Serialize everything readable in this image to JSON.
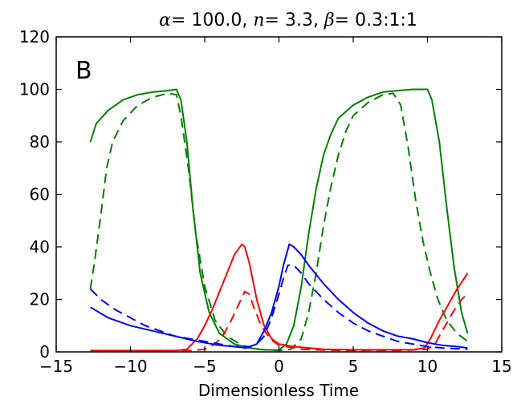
{
  "chart_data": {
    "type": "line",
    "title": {
      "alpha_symbol": "α",
      "alpha_text": "= 100.0, ",
      "n_symbol": "n",
      "n_text": "= 3.3, ",
      "beta_symbol": "β",
      "beta_text": "= 0.3:1:1"
    },
    "panel_label": "B",
    "xlabel": "Dimensionless Time",
    "ylabel": "",
    "xlim": [
      -15,
      15
    ],
    "ylim": [
      0,
      120
    ],
    "xticks": [
      -15,
      -10,
      -5,
      0,
      5,
      10,
      15
    ],
    "xtick_labels": [
      "−15",
      "−10",
      "−5",
      "0",
      "5",
      "10",
      "15"
    ],
    "yticks": [
      0,
      20,
      40,
      60,
      80,
      100,
      120
    ],
    "ytick_labels": [
      "0",
      "20",
      "40",
      "60",
      "80",
      "100",
      "120"
    ],
    "grid": false,
    "series": [
      {
        "color": "#008000",
        "style": "solid",
        "points": [
          [
            -12.7,
            80
          ],
          [
            -12.3,
            87
          ],
          [
            -11.5,
            92
          ],
          [
            -10.5,
            96
          ],
          [
            -9.5,
            98
          ],
          [
            -8.5,
            99
          ],
          [
            -7.5,
            99.5
          ],
          [
            -6.9,
            100
          ],
          [
            -6.6,
            96
          ],
          [
            -6.2,
            80
          ],
          [
            -5.8,
            55
          ],
          [
            -5.3,
            30
          ],
          [
            -4.7,
            15
          ],
          [
            -4,
            7
          ],
          [
            -3,
            3
          ],
          [
            -2,
            1.5
          ],
          [
            -1,
            0.8
          ],
          [
            0,
            0.7
          ],
          [
            0.5,
            3
          ],
          [
            1,
            10
          ],
          [
            1.5,
            25
          ],
          [
            2,
            45
          ],
          [
            2.5,
            62
          ],
          [
            3,
            75
          ],
          [
            3.5,
            83
          ],
          [
            4,
            89
          ],
          [
            5,
            94
          ],
          [
            6,
            97
          ],
          [
            7,
            99
          ],
          [
            8,
            99.5
          ],
          [
            9,
            100
          ],
          [
            10,
            100
          ],
          [
            10.3,
            96
          ],
          [
            10.8,
            80
          ],
          [
            11.3,
            55
          ],
          [
            11.8,
            32
          ],
          [
            12.3,
            15
          ],
          [
            12.7,
            7
          ]
        ]
      },
      {
        "color": "#008000",
        "style": "dashed",
        "points": [
          [
            -12.7,
            24
          ],
          [
            -12.4,
            35
          ],
          [
            -12,
            52
          ],
          [
            -11.6,
            70
          ],
          [
            -11.2,
            80
          ],
          [
            -10.5,
            88
          ],
          [
            -9.5,
            94
          ],
          [
            -8.5,
            97
          ],
          [
            -7.5,
            98.5
          ],
          [
            -6.9,
            98
          ],
          [
            -6.6,
            90
          ],
          [
            -6.1,
            70
          ],
          [
            -5.6,
            45
          ],
          [
            -5,
            25
          ],
          [
            -4.3,
            12
          ],
          [
            -3.5,
            6
          ],
          [
            -2.5,
            2.5
          ],
          [
            -1.5,
            1
          ],
          [
            0,
            0.5
          ],
          [
            0.8,
            1
          ],
          [
            1.5,
            5
          ],
          [
            2,
            15
          ],
          [
            2.5,
            30
          ],
          [
            3,
            48
          ],
          [
            3.5,
            63
          ],
          [
            4,
            75
          ],
          [
            4.5,
            84
          ],
          [
            5,
            90
          ],
          [
            6,
            95
          ],
          [
            7,
            98
          ],
          [
            7.7,
            98.5
          ],
          [
            8.2,
            94
          ],
          [
            8.7,
            78
          ],
          [
            9.2,
            58
          ],
          [
            9.7,
            42
          ],
          [
            10.2,
            30
          ],
          [
            10.7,
            20
          ],
          [
            11.3,
            12
          ],
          [
            12,
            7
          ],
          [
            12.7,
            4
          ]
        ]
      },
      {
        "color": "#ff0000",
        "style": "solid",
        "points": [
          [
            -12.7,
            0.5
          ],
          [
            -10,
            0.5
          ],
          [
            -7,
            0.5
          ],
          [
            -6.2,
            1
          ],
          [
            -5.5,
            5
          ],
          [
            -5,
            10
          ],
          [
            -4.5,
            16
          ],
          [
            -4,
            23
          ],
          [
            -3.5,
            30
          ],
          [
            -3,
            37
          ],
          [
            -2.5,
            41
          ],
          [
            -2.3,
            40
          ],
          [
            -2,
            34
          ],
          [
            -1.5,
            20
          ],
          [
            -1,
            10
          ],
          [
            -0.5,
            5
          ],
          [
            0,
            3
          ],
          [
            1,
            2
          ],
          [
            3,
            1
          ],
          [
            5,
            0.8
          ],
          [
            7,
            0.8
          ],
          [
            9,
            0.8
          ],
          [
            9.8,
            1.5
          ],
          [
            10.2,
            5
          ],
          [
            10.8,
            12
          ],
          [
            11.5,
            19
          ],
          [
            12,
            24
          ],
          [
            12.7,
            30
          ]
        ]
      },
      {
        "color": "#ff0000",
        "style": "dashed",
        "points": [
          [
            -12.7,
            0.5
          ],
          [
            -8,
            0.5
          ],
          [
            -6,
            0.5
          ],
          [
            -5,
            1
          ],
          [
            -4.3,
            3
          ],
          [
            -3.8,
            6
          ],
          [
            -3.3,
            11
          ],
          [
            -2.8,
            17
          ],
          [
            -2.3,
            23
          ],
          [
            -2,
            22
          ],
          [
            -1.7,
            17
          ],
          [
            -1.2,
            10
          ],
          [
            -0.6,
            5
          ],
          [
            0,
            2.5
          ],
          [
            1.5,
            1
          ],
          [
            4,
            0.5
          ],
          [
            8,
            0.5
          ],
          [
            10,
            1
          ],
          [
            10.5,
            3
          ],
          [
            11,
            8
          ],
          [
            11.7,
            15
          ],
          [
            12.3,
            20
          ],
          [
            12.7,
            22
          ]
        ]
      },
      {
        "color": "#0000ff",
        "style": "solid",
        "points": [
          [
            -12.7,
            17
          ],
          [
            -11.5,
            13
          ],
          [
            -10,
            10
          ],
          [
            -8.5,
            8
          ],
          [
            -7,
            6
          ],
          [
            -5.5,
            4
          ],
          [
            -4,
            2.5
          ],
          [
            -3,
            2
          ],
          [
            -2.2,
            1.5
          ],
          [
            -1.5,
            3
          ],
          [
            -1,
            8
          ],
          [
            -0.5,
            15
          ],
          [
            0,
            25
          ],
          [
            0.3,
            33
          ],
          [
            0.7,
            41
          ],
          [
            1,
            40
          ],
          [
            1.5,
            37
          ],
          [
            2,
            33
          ],
          [
            3,
            26
          ],
          [
            4,
            20
          ],
          [
            5,
            15
          ],
          [
            6,
            11
          ],
          [
            7,
            8
          ],
          [
            8,
            6
          ],
          [
            9,
            5
          ],
          [
            10,
            3.5
          ],
          [
            11,
            2.5
          ],
          [
            12,
            2
          ],
          [
            12.7,
            1.5
          ]
        ]
      },
      {
        "color": "#0000ff",
        "style": "dashed",
        "points": [
          [
            -12.7,
            24
          ],
          [
            -12,
            20
          ],
          [
            -11,
            16
          ],
          [
            -10,
            13
          ],
          [
            -9,
            10
          ],
          [
            -8,
            8
          ],
          [
            -7,
            6
          ],
          [
            -6,
            5
          ],
          [
            -5,
            4
          ],
          [
            -4,
            3
          ],
          [
            -3,
            2
          ],
          [
            -2,
            2
          ],
          [
            -1.5,
            3
          ],
          [
            -1,
            6
          ],
          [
            -0.5,
            13
          ],
          [
            0,
            22
          ],
          [
            0.3,
            28
          ],
          [
            0.6,
            33
          ],
          [
            1,
            33
          ],
          [
            1.5,
            30
          ],
          [
            2,
            26
          ],
          [
            3,
            20
          ],
          [
            4,
            15
          ],
          [
            5,
            11
          ],
          [
            6,
            8
          ],
          [
            7,
            6
          ],
          [
            8,
            4
          ],
          [
            9,
            3
          ],
          [
            10,
            2
          ],
          [
            11,
            1.5
          ],
          [
            12.7,
            1
          ]
        ]
      }
    ]
  }
}
